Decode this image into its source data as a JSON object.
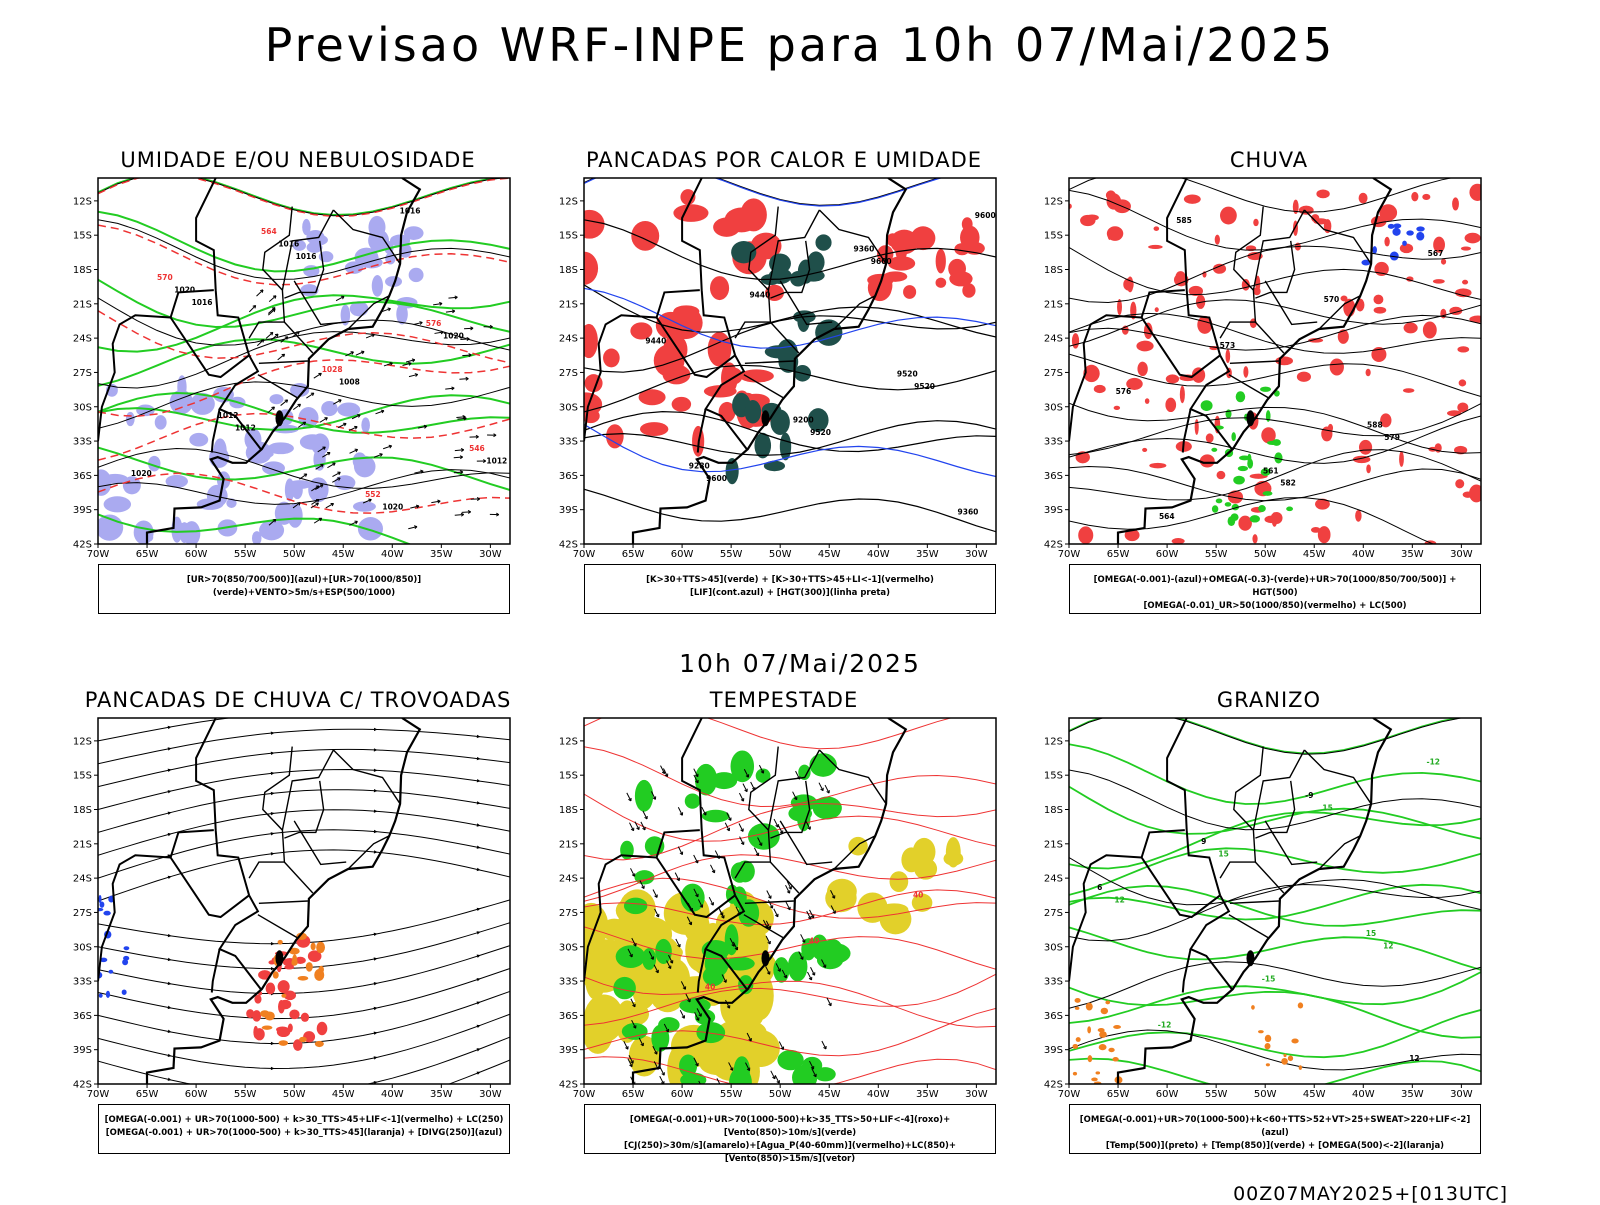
{
  "title": "Previsao WRF-INPE  para 10h 07/Mai/2025",
  "subtitle": "10h 07/Mai/2025",
  "footer": "00Z07MAY2025+[013UTC]",
  "lat_ticks": [
    "12S",
    "15S",
    "18S",
    "21S",
    "24S",
    "27S",
    "30S",
    "33S",
    "36S",
    "39S",
    "42S"
  ],
  "lon_ticks": [
    "70W",
    "65W",
    "60W",
    "55W",
    "50W",
    "45W",
    "40W",
    "35W",
    "30W"
  ],
  "panels": [
    {
      "title": "UMIDADE E/OU NEBULOSIDADE",
      "legend": [
        "[UR>70(850/700/500)](azul)+[UR>70(1000/850)](verde)+VENTO>5m/s+ESP(500/1000)"
      ],
      "labels": [
        "1016",
        "1016",
        "1016",
        "1020",
        "1012",
        "1008",
        "1020",
        "1020",
        "1016",
        "1020",
        "1012",
        "1012",
        "1028",
        "576",
        "570",
        "564",
        "552",
        "546"
      ]
    },
    {
      "title": "PANCADAS POR CALOR E UMIDADE",
      "legend": [
        "[K>30+TTS>45](verde) + [K>30+TTS>45+LI<-1](vermelho)",
        "[LIF](cont.azul) + [HGT(300)](linha preta)"
      ],
      "labels": [
        "9600",
        "9600",
        "9600",
        "9520",
        "9520",
        "9440",
        "9440",
        "9360",
        "9360",
        "9280",
        "9200",
        "9520"
      ]
    },
    {
      "title": "CHUVA",
      "legend": [
        "[OMEGA(-0.001)-(azul)+OMEGA(-0.3)-(verde)+UR>70(1000/850/700/500)] + HGT(500)",
        "[OMEGA(-0.01)_UR>50(1000/850)(vermelho) + LC(500)"
      ],
      "labels": [
        "585",
        "582",
        "579",
        "576",
        "573",
        "570",
        "567",
        "564",
        "561",
        "588"
      ]
    },
    {
      "title": "PANCADAS DE CHUVA C/ TROVOADAS",
      "legend": [
        "[OMEGA(-0.001) + UR>70(1000-500) + k>30_TTS>45+LIF<-1](vermelho) + LC(250)",
        "[OMEGA(-0.001) + UR>70(1000-500) + k>30_TTS>45](laranja) + [DIVG(250)](azul)"
      ],
      "labels": []
    },
    {
      "title": "TEMPESTADE",
      "legend": [
        "[OMEGA(-0.001)+UR>70(1000-500)+k>35_TTS>50+LIF<-4](roxo)+[Vento(850)>10m/s](verde)",
        "[CJ(250)>30m/s](amarelo)+[Agua_P(40-60mm)](vermelho)+LC(850)+[Vento(850)>15m/s](vetor)"
      ],
      "labels": [
        "40",
        "40",
        "40"
      ]
    },
    {
      "title": "GRANIZO",
      "legend": [
        "[OMEGA(-0.001)+UR>70(1000-500)+k<60+TTS>52+VT>25+SWEAT>220+LIF<-2](azul)",
        "[Temp(500)](preto) + [Temp(850)](verde) + [OMEGA(500)<-2](laranja)"
      ],
      "labels": [
        "12",
        "12",
        "15",
        "15",
        "-12",
        "-12",
        "-15",
        "15",
        "6",
        "9",
        "-9",
        "12"
      ]
    }
  ]
}
